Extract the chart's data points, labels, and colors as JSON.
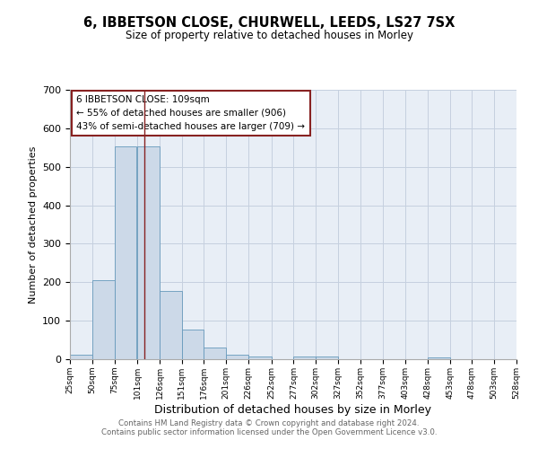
{
  "title": "6, IBBETSON CLOSE, CHURWELL, LEEDS, LS27 7SX",
  "subtitle": "Size of property relative to detached houses in Morley",
  "xlabel": "Distribution of detached houses by size in Morley",
  "ylabel": "Number of detached properties",
  "bar_left_edges": [
    25,
    50,
    75,
    101,
    126,
    151,
    176,
    201,
    226,
    252,
    277,
    302,
    327,
    352,
    377,
    403,
    428,
    453,
    478,
    503
  ],
  "bar_widths": [
    25,
    25,
    25,
    25,
    25,
    25,
    25,
    25,
    26,
    25,
    25,
    25,
    25,
    25,
    25,
    25,
    25,
    25,
    25,
    25
  ],
  "bar_heights": [
    12,
    205,
    553,
    553,
    178,
    77,
    30,
    12,
    8,
    0,
    8,
    8,
    0,
    0,
    0,
    0,
    5,
    0,
    0,
    0
  ],
  "bar_color": "#ccd9e8",
  "bar_edge_color": "#6699bb",
  "ylim": [
    0,
    700
  ],
  "yticks": [
    0,
    100,
    200,
    300,
    400,
    500,
    600,
    700
  ],
  "xtick_labels": [
    "25sqm",
    "50sqm",
    "75sqm",
    "101sqm",
    "126sqm",
    "151sqm",
    "176sqm",
    "201sqm",
    "226sqm",
    "252sqm",
    "277sqm",
    "302sqm",
    "327sqm",
    "352sqm",
    "377sqm",
    "403sqm",
    "428sqm",
    "453sqm",
    "478sqm",
    "503sqm",
    "528sqm"
  ],
  "vline_x": 109,
  "vline_color": "#882222",
  "annotation_text": "6 IBBETSON CLOSE: 109sqm\n← 55% of detached houses are smaller (906)\n43% of semi-detached houses are larger (709) →",
  "annotation_box_color": "#882222",
  "grid_color": "#c5d0df",
  "bg_color": "#e8eef6",
  "footnote1": "Contains HM Land Registry data © Crown copyright and database right 2024.",
  "footnote2": "Contains public sector information licensed under the Open Government Licence v3.0."
}
